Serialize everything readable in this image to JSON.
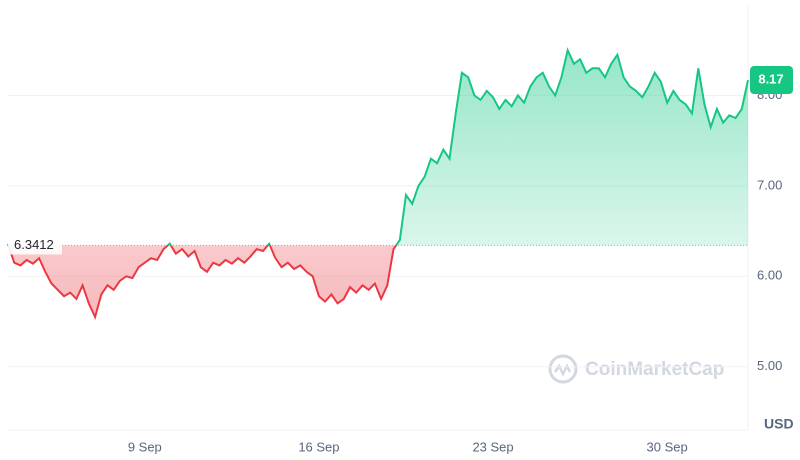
{
  "chart_data": {
    "type": "line",
    "categories": [
      null,
      null,
      null,
      null,
      null,
      null,
      null,
      null,
      null,
      null,
      null,
      null,
      null,
      null,
      null,
      null,
      null,
      null,
      null,
      null,
      null,
      null,
      "9 Sep",
      null,
      null,
      null,
      null,
      null,
      null,
      null,
      null,
      null,
      null,
      null,
      null,
      null,
      null,
      null,
      null,
      null,
      null,
      null,
      null,
      null,
      null,
      null,
      null,
      null,
      null,
      null,
      "16 Sep",
      null,
      null,
      null,
      null,
      null,
      null,
      null,
      null,
      null,
      null,
      null,
      null,
      null,
      null,
      null,
      null,
      null,
      null,
      null,
      null,
      null,
      null,
      null,
      null,
      null,
      null,
      null,
      "23 Sep",
      null,
      null,
      null,
      null,
      null,
      null,
      null,
      null,
      null,
      null,
      null,
      null,
      null,
      null,
      null,
      null,
      null,
      null,
      null,
      null,
      null,
      null,
      null,
      null,
      null,
      null,
      null,
      "30 Sep",
      null,
      null,
      null,
      null,
      null,
      null,
      null,
      null,
      null,
      null,
      null,
      null,
      null
    ],
    "values": [
      6.36,
      6.15,
      6.12,
      6.18,
      6.14,
      6.2,
      6.05,
      5.92,
      5.85,
      5.78,
      5.82,
      5.75,
      5.9,
      5.7,
      5.55,
      5.8,
      5.9,
      5.85,
      5.95,
      6.0,
      5.98,
      6.1,
      6.15,
      6.2,
      6.18,
      6.3,
      6.36,
      6.25,
      6.3,
      6.22,
      6.28,
      6.1,
      6.05,
      6.15,
      6.12,
      6.18,
      6.14,
      6.2,
      6.15,
      6.22,
      6.3,
      6.28,
      6.36,
      6.2,
      6.1,
      6.15,
      6.08,
      6.12,
      6.05,
      6.0,
      5.78,
      5.72,
      5.8,
      5.7,
      5.75,
      5.88,
      5.82,
      5.9,
      5.85,
      5.92,
      5.75,
      5.9,
      6.3,
      6.4,
      6.9,
      6.8,
      7.0,
      7.1,
      7.3,
      7.25,
      7.4,
      7.3,
      7.8,
      8.25,
      8.2,
      8.0,
      7.95,
      8.05,
      7.98,
      7.85,
      7.95,
      7.88,
      8.0,
      7.92,
      8.1,
      8.2,
      8.25,
      8.1,
      8.0,
      8.2,
      8.5,
      8.35,
      8.4,
      8.25,
      8.3,
      8.3,
      8.2,
      8.35,
      8.45,
      8.2,
      8.1,
      8.05,
      7.98,
      8.1,
      8.25,
      8.15,
      7.92,
      8.05,
      7.95,
      7.9,
      7.8,
      8.3,
      7.9,
      7.65,
      7.85,
      7.7,
      7.78,
      7.75,
      7.85,
      8.17
    ],
    "baseline": 6.3412,
    "color_up": "#16c784",
    "color_down": "#ea3943",
    "ylim": [
      4.3,
      9.0
    ],
    "yticks": [
      {
        "value": 5,
        "label": "5.00"
      },
      {
        "value": 6,
        "label": "6.00"
      },
      {
        "value": 7,
        "label": "7.00"
      },
      {
        "value": 8,
        "label": "8.00"
      }
    ],
    "grid": true,
    "currency": "USD",
    "watermark": "CoinMarketCap"
  }
}
